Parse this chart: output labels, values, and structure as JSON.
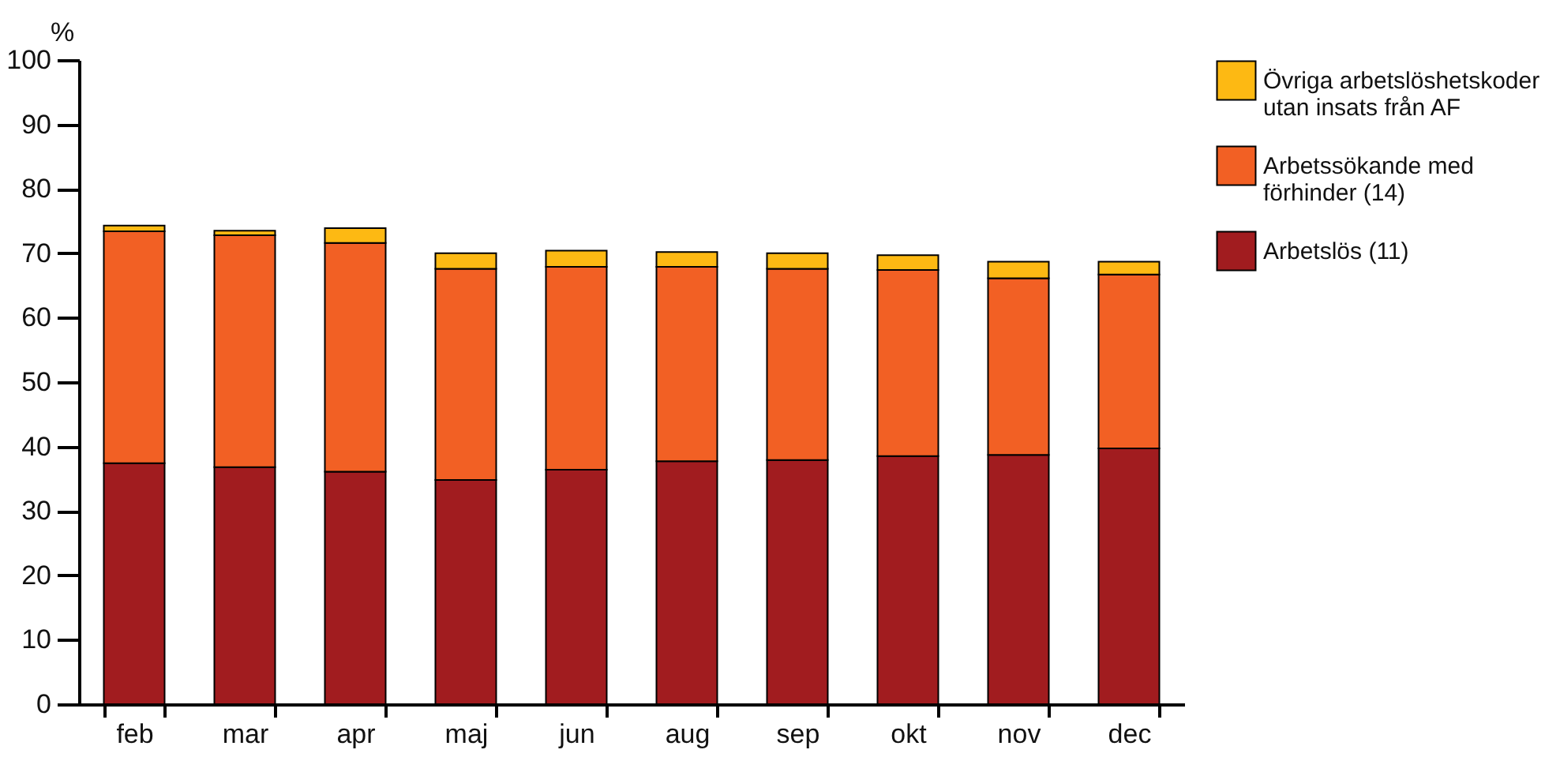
{
  "chart_data": {
    "type": "bar",
    "stacked": true,
    "ylabel": "%",
    "categories": [
      "feb",
      "mar",
      "apr",
      "maj",
      "jun",
      "aug",
      "sep",
      "okt",
      "nov",
      "dec"
    ],
    "series": [
      {
        "name": "Arbetslös (11)",
        "color": "#a11c1f",
        "values": [
          37.4,
          36.8,
          36.1,
          34.8,
          36.4,
          37.7,
          37.9,
          38.5,
          38.7,
          39.7
        ]
      },
      {
        "name": "Arbetssökande med förhinder (14)",
        "color": "#f26024",
        "values": [
          36.0,
          36.0,
          35.5,
          32.8,
          31.5,
          30.2,
          29.7,
          28.9,
          27.4,
          27.0
        ]
      },
      {
        "name": "Övriga arbetslöshetskoder utan insats från AF",
        "color": "#fdb913",
        "values": [
          0.9,
          0.7,
          2.3,
          2.4,
          2.5,
          2.3,
          2.4,
          2.3,
          2.6,
          2.0
        ]
      }
    ],
    "ylim": [
      0,
      100
    ],
    "yticks": [
      0,
      10,
      20,
      30,
      40,
      50,
      60,
      70,
      80,
      90,
      100
    ],
    "grid": false,
    "legend": "top right"
  }
}
